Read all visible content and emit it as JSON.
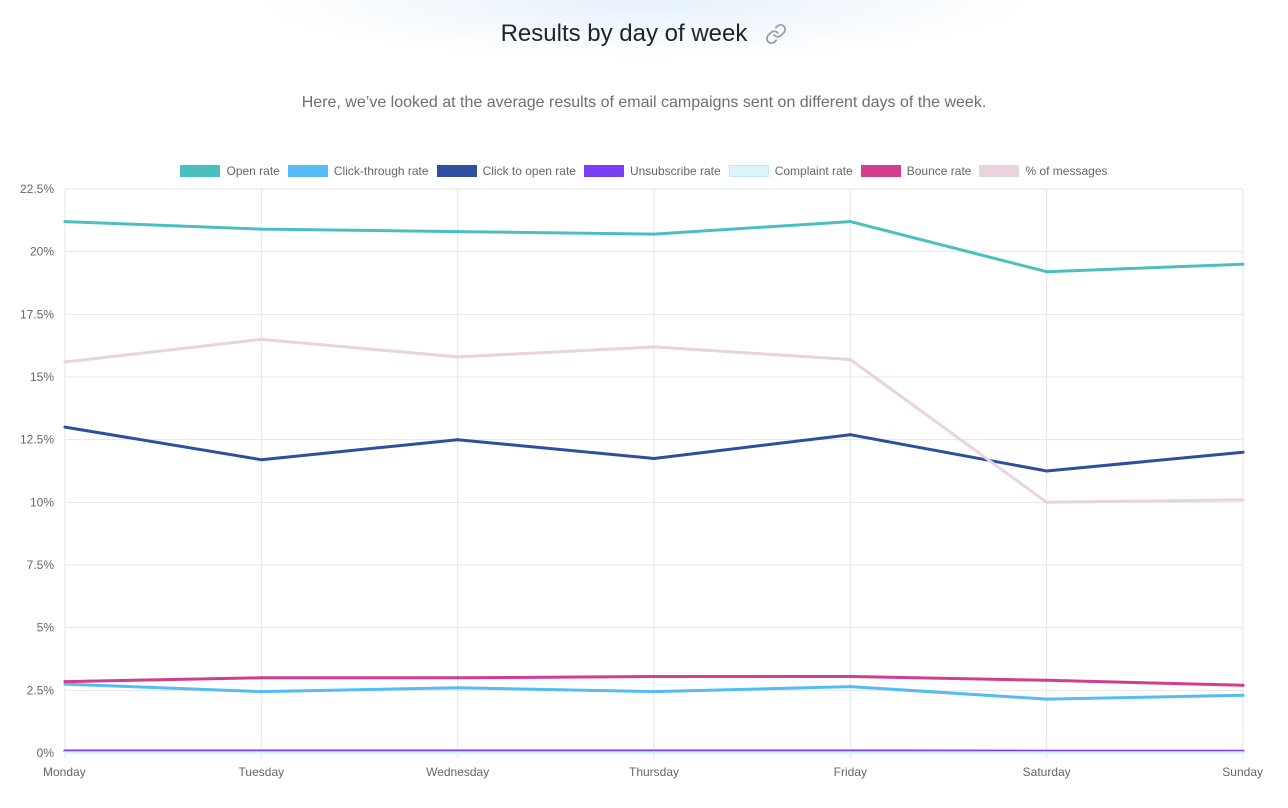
{
  "header": {
    "title": "Results by day of week",
    "subtitle": "Here, we’ve looked at the average results of email campaigns sent on different days of the week."
  },
  "icons": {
    "link": "link-icon"
  },
  "chart_data": {
    "type": "line",
    "categories": [
      "Monday",
      "Tuesday",
      "Wednesday",
      "Thursday",
      "Friday",
      "Saturday",
      "Sunday"
    ],
    "y_ticks": [
      "0%",
      "2.5%",
      "5%",
      "7.5%",
      "10%",
      "12.5%",
      "15%",
      "17.5%",
      "20%",
      "22.5%"
    ],
    "ylim": [
      0,
      22.5
    ],
    "y_unit": "%",
    "grid": true,
    "legend_position": "top-center",
    "series": [
      {
        "name": "Open rate",
        "color": "#4bbfbf",
        "values": [
          21.2,
          20.9,
          20.8,
          20.7,
          21.2,
          19.2,
          19.5
        ]
      },
      {
        "name": "Click-through rate",
        "color": "#54bbf7",
        "values": [
          2.75,
          2.45,
          2.6,
          2.45,
          2.65,
          2.15,
          2.3
        ]
      },
      {
        "name": "Click to open rate",
        "color": "#2e4f9f",
        "values": [
          13.0,
          11.7,
          12.5,
          11.75,
          12.7,
          11.25,
          12.0
        ]
      },
      {
        "name": "Unsubscribe rate",
        "color": "#7a3ef7",
        "values": [
          0.08,
          0.08,
          0.08,
          0.08,
          0.08,
          0.07,
          0.07
        ]
      },
      {
        "name": "Complaint rate",
        "color": "#d9f4fb",
        "values": [
          0.01,
          0.01,
          0.01,
          0.01,
          0.01,
          0.01,
          0.01
        ]
      },
      {
        "name": "Bounce rate",
        "color": "#d23d8e",
        "values": [
          2.85,
          3.0,
          3.0,
          3.05,
          3.05,
          2.9,
          2.7
        ]
      },
      {
        "name": "% of messages",
        "color": "#e8d3df",
        "values": [
          15.6,
          16.5,
          15.8,
          16.2,
          15.7,
          10.0,
          10.1
        ]
      }
    ]
  }
}
